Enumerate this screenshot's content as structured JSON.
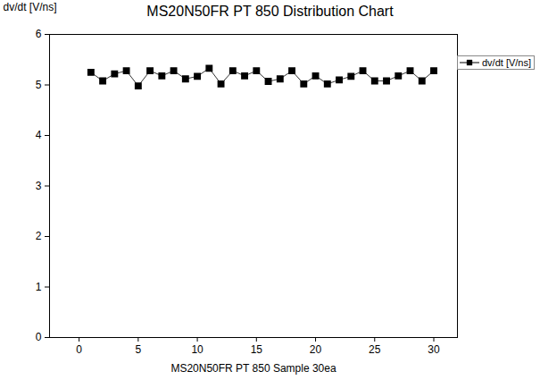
{
  "chart_data": {
    "type": "line",
    "title": "MS20N50FR PT 850 Distribution Chart",
    "xlabel": "MS20N50FR PT 850 Sample 30ea",
    "ylabel": "dv/dt [V/ns]",
    "x": [
      1,
      2,
      3,
      4,
      5,
      6,
      7,
      8,
      9,
      10,
      11,
      12,
      13,
      14,
      15,
      16,
      17,
      18,
      19,
      20,
      21,
      22,
      23,
      24,
      25,
      26,
      27,
      28,
      29,
      30
    ],
    "series": [
      {
        "name": "dv/dt [V/ns]",
        "color": "#000000",
        "marker": "square",
        "line_style": "solid",
        "values": [
          5.25,
          5.08,
          5.22,
          5.28,
          4.98,
          5.28,
          5.18,
          5.28,
          5.12,
          5.17,
          5.33,
          5.02,
          5.28,
          5.18,
          5.28,
          5.07,
          5.12,
          5.28,
          5.02,
          5.18,
          5.02,
          5.1,
          5.17,
          5.28,
          5.08,
          5.08,
          5.18,
          5.28,
          5.08,
          5.28
        ]
      }
    ],
    "xlim": [
      -2.5,
      32
    ],
    "xticks": [
      0,
      5,
      10,
      15,
      20,
      25,
      30
    ],
    "ylim": [
      0,
      6
    ],
    "yticks": [
      0,
      1,
      2,
      3,
      4,
      5,
      6
    ],
    "grid": false,
    "legend": "top-right"
  }
}
